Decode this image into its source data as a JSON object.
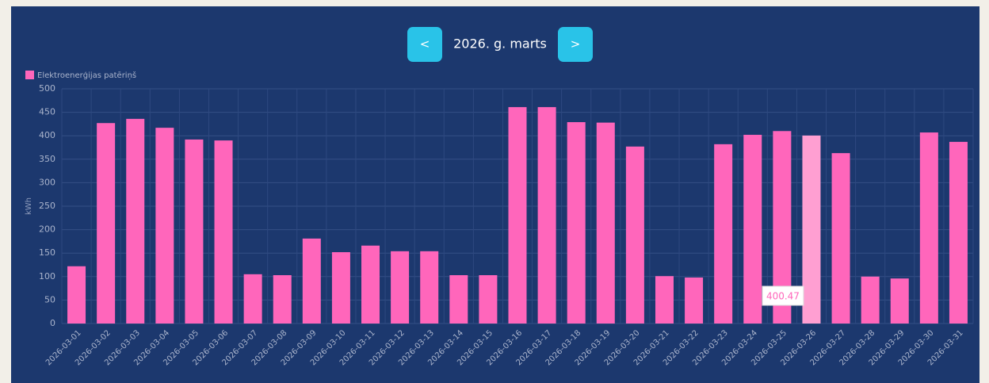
{
  "nav": {
    "prev": "<",
    "next": ">"
  },
  "chart_data": {
    "type": "bar",
    "title": "2026. g. marts",
    "ylabel": "kWh",
    "categories": [
      "2026-03-01",
      "2026-03-02",
      "2026-03-03",
      "2026-03-04",
      "2026-03-05",
      "2026-03-06",
      "2026-03-07",
      "2026-03-08",
      "2026-03-09",
      "2026-03-10",
      "2026-03-11",
      "2026-03-12",
      "2026-03-13",
      "2026-03-14",
      "2026-03-15",
      "2026-03-16",
      "2026-03-17",
      "2026-03-18",
      "2026-03-19",
      "2026-03-20",
      "2026-03-21",
      "2026-03-22",
      "2026-03-23",
      "2026-03-24",
      "2026-03-25",
      "2026-03-26",
      "2026-03-27",
      "2026-03-28",
      "2026-03-29",
      "2026-03-30",
      "2026-03-31"
    ],
    "series": [
      {
        "name": "Elektroenerģijas patēriņš",
        "color": "#ff66bb",
        "values": [
          122,
          427,
          436,
          417,
          392,
          390,
          105,
          103,
          181,
          152,
          166,
          154,
          154,
          103,
          103,
          461,
          461,
          429,
          428,
          377,
          101,
          98,
          382,
          402,
          410,
          400.47,
          363,
          100,
          96,
          407,
          387
        ]
      }
    ],
    "ylim": [
      0,
      500
    ],
    "yticks": [
      0,
      50,
      100,
      150,
      200,
      250,
      300,
      350,
      400,
      450,
      500
    ],
    "grid": true
  }
}
